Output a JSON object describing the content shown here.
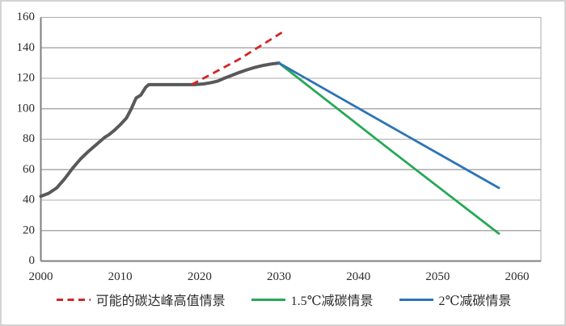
{
  "chart_data": {
    "type": "line",
    "title": "",
    "xlabel": "",
    "ylabel": "",
    "xlim": [
      2000,
      2063
    ],
    "ylim": [
      0,
      160
    ],
    "x_ticks": [
      2000,
      2010,
      2020,
      2030,
      2040,
      2050,
      2060
    ],
    "y_ticks": [
      0,
      20,
      40,
      60,
      80,
      100,
      120,
      140,
      160
    ],
    "grid": "horizontal-only",
    "legend_position": "bottom",
    "colors": {
      "axis": "#7f7f7f",
      "gridline": "#ababab",
      "plot_border": "#ababab",
      "text": "#2b2b2b",
      "frame_border": "#d3d3d3"
    },
    "series": [
      {
        "id": "historical-emissions",
        "label": "",
        "color": "#595959",
        "width": 4,
        "dash": "",
        "points": [
          [
            2000,
            42.5
          ],
          [
            2001,
            44.5
          ],
          [
            2002,
            48
          ],
          [
            2003,
            54
          ],
          [
            2004,
            61
          ],
          [
            2005,
            67
          ],
          [
            2006,
            72
          ],
          [
            2007,
            76.5
          ],
          [
            2008,
            81
          ],
          [
            2008.6,
            83
          ],
          [
            2009.3,
            86
          ],
          [
            2010,
            89.5
          ],
          [
            2010.8,
            94
          ],
          [
            2011.4,
            100
          ],
          [
            2012,
            107
          ],
          [
            2012.6,
            109
          ],
          [
            2013.2,
            114
          ],
          [
            2013.6,
            115.8
          ],
          [
            2019.3,
            115.8
          ],
          [
            2020.5,
            116.3
          ],
          [
            2021.5,
            117.2
          ],
          [
            2022.3,
            118.2
          ],
          [
            2023,
            119.8
          ],
          [
            2024,
            121.8
          ],
          [
            2025,
            123.8
          ],
          [
            2026,
            125.6
          ],
          [
            2027,
            127.2
          ],
          [
            2028,
            128.4
          ],
          [
            2029,
            129.4
          ],
          [
            2030,
            130
          ]
        ]
      },
      {
        "id": "peak-high-scenario",
        "label": "可能的碳达峰高值情景",
        "color": "#d22527",
        "width": 2.8,
        "dash": "9 6",
        "points": [
          [
            2019,
            115.8
          ],
          [
            2025,
            132.5
          ],
          [
            2030.5,
            150.5
          ]
        ]
      },
      {
        "id": "scenario-1-5c",
        "label": "1.5℃减碳情景",
        "color": "#27a857",
        "width": 2.8,
        "dash": "",
        "points": [
          [
            2030,
            130
          ],
          [
            2044,
            73
          ],
          [
            2057.7,
            18
          ]
        ]
      },
      {
        "id": "scenario-2c",
        "label": "2℃减碳情景",
        "color": "#2d74b7",
        "width": 2.8,
        "dash": "",
        "points": [
          [
            2030,
            130
          ],
          [
            2044,
            88.5
          ],
          [
            2057.7,
            48
          ]
        ]
      }
    ]
  }
}
